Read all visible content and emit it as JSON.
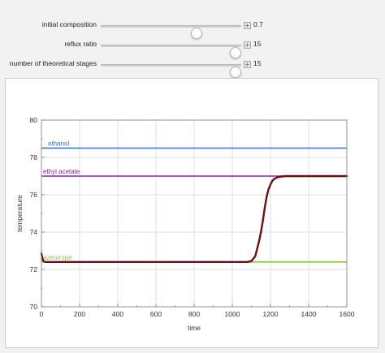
{
  "controls": [
    {
      "label": "initial composition",
      "value_text": "0.7",
      "value": 0.7,
      "min": 0,
      "max": 1,
      "plus_icon": "plus-icon"
    },
    {
      "label": "reflux ratio",
      "value_text": "15",
      "value": 15,
      "min": 0,
      "max": 15,
      "plus_icon": "plus-icon"
    },
    {
      "label": "number of theoretical stages",
      "value_text": "15",
      "value": 15,
      "min": 0,
      "max": 15,
      "plus_icon": "plus-icon"
    }
  ],
  "chart_data": {
    "type": "line",
    "xlabel": "time",
    "ylabel": "temperature",
    "xlim": [
      0,
      1600
    ],
    "ylim": [
      70,
      80
    ],
    "xticks": [
      0,
      200,
      400,
      600,
      800,
      1000,
      1200,
      1400,
      1600
    ],
    "yticks": [
      70,
      72,
      74,
      76,
      78,
      80
    ],
    "grid": true,
    "reference_lines": [
      {
        "label": "ethanol",
        "y": 78.5,
        "color": "#3a6fc4"
      },
      {
        "label": "ethyl acetate",
        "y": 77.0,
        "color": "#7b2a99"
      },
      {
        "label": "azeotrope",
        "y": 72.4,
        "color": "#8fc44a"
      }
    ],
    "series": [
      {
        "color": "#6b0f0f",
        "x": [
          0,
          5,
          10,
          20,
          50,
          200,
          400,
          600,
          800,
          1000,
          1080,
          1100,
          1120,
          1140,
          1150,
          1160,
          1170,
          1180,
          1190,
          1200,
          1210,
          1220,
          1240,
          1260,
          1280,
          1300,
          1350,
          1400,
          1500,
          1600
        ],
        "y": [
          72.85,
          72.6,
          72.45,
          72.4,
          72.4,
          72.4,
          72.4,
          72.4,
          72.4,
          72.4,
          72.4,
          72.45,
          72.7,
          73.5,
          74.0,
          74.6,
          75.3,
          75.9,
          76.3,
          76.55,
          76.75,
          76.85,
          76.95,
          76.98,
          77.0,
          77.0,
          77.0,
          77.0,
          77.0,
          77.0
        ]
      }
    ]
  }
}
